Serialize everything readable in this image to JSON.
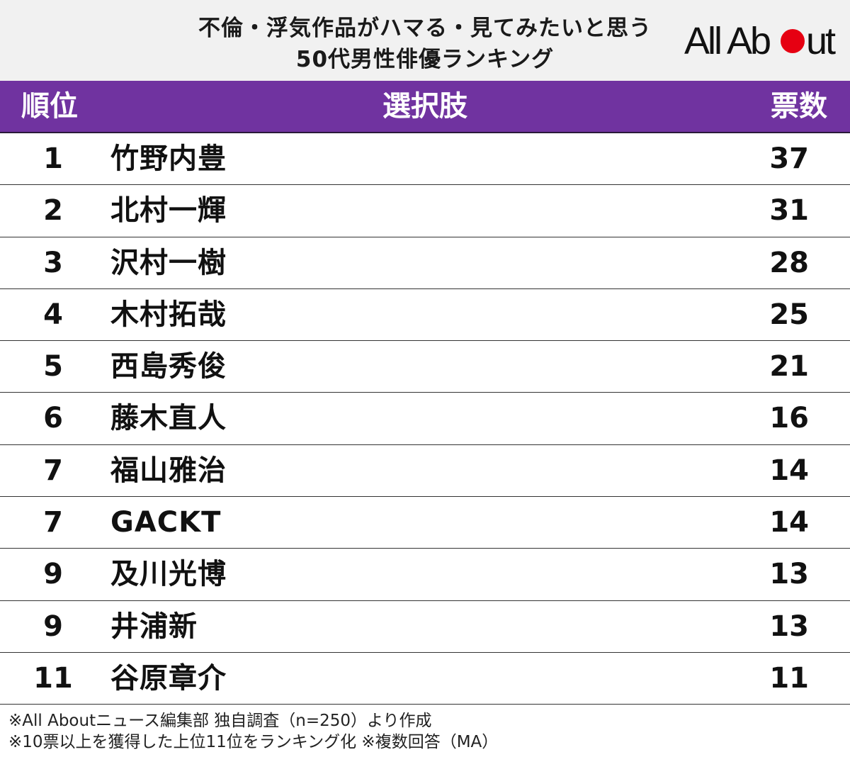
{
  "title": {
    "line1": "不倫・浮気作品がハマる・見てみたいと思う",
    "line2": "50代男性俳優ランキング"
  },
  "logo": {
    "text": "All About",
    "accent_color": "#e60012"
  },
  "colors": {
    "header_bg": "#7033a0",
    "title_bg": "#f1f1f1"
  },
  "header": {
    "rank": "順位",
    "choice": "選択肢",
    "votes": "票数"
  },
  "chart_data": {
    "type": "table",
    "title": "不倫・浮気作品がハマる・見てみたいと思う 50代男性俳優ランキング",
    "columns": [
      "順位",
      "選択肢",
      "票数"
    ],
    "rows": [
      {
        "rank": "1",
        "name": "竹野内豊",
        "votes": "37"
      },
      {
        "rank": "2",
        "name": "北村一輝",
        "votes": "31"
      },
      {
        "rank": "3",
        "name": "沢村一樹",
        "votes": "28"
      },
      {
        "rank": "4",
        "name": "木村拓哉",
        "votes": "25"
      },
      {
        "rank": "5",
        "name": "西島秀俊",
        "votes": "21"
      },
      {
        "rank": "6",
        "name": "藤木直人",
        "votes": "16"
      },
      {
        "rank": "7",
        "name": "福山雅治",
        "votes": "14"
      },
      {
        "rank": "7",
        "name": "GACKT",
        "votes": "14"
      },
      {
        "rank": "9",
        "name": "及川光博",
        "votes": "13"
      },
      {
        "rank": "9",
        "name": "井浦新",
        "votes": "13"
      },
      {
        "rank": "11",
        "name": "谷原章介",
        "votes": "11"
      }
    ]
  },
  "notes": {
    "line1": "※All Aboutニュース編集部 独自調査（n=250）より作成",
    "line2": "※10票以上を獲得した上位11位をランキング化 ※複数回答（MA）"
  }
}
